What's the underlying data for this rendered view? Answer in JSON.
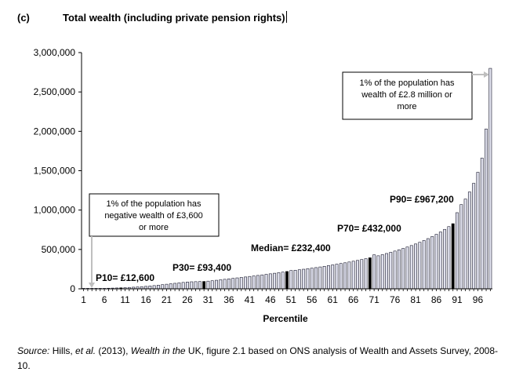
{
  "heading": {
    "tag": "(c)",
    "title": "Total wealth (including private pension rights)"
  },
  "chart_data": {
    "type": "bar",
    "title": "Total wealth (including private pension rights)",
    "xlabel": "Percentile",
    "ylabel": "",
    "ylim": [
      0,
      3000000
    ],
    "yticks": [
      "0",
      "500,000",
      "1,000,000",
      "1,500,000",
      "2,000,000",
      "2,500,000",
      "3,000,000"
    ],
    "xticks": [
      "1",
      "6",
      "11",
      "16",
      "21",
      "26",
      "31",
      "36",
      "41",
      "46",
      "51",
      "56",
      "61",
      "66",
      "71",
      "76",
      "81",
      "86",
      "91",
      "96"
    ],
    "categories": [
      1,
      2,
      3,
      4,
      5,
      6,
      7,
      8,
      9,
      10,
      11,
      12,
      13,
      14,
      15,
      16,
      17,
      18,
      19,
      20,
      21,
      22,
      23,
      24,
      25,
      26,
      27,
      28,
      29,
      30,
      31,
      32,
      33,
      34,
      35,
      36,
      37,
      38,
      39,
      40,
      41,
      42,
      43,
      44,
      45,
      46,
      47,
      48,
      49,
      50,
      51,
      52,
      53,
      54,
      55,
      56,
      57,
      58,
      59,
      60,
      61,
      62,
      63,
      64,
      65,
      66,
      67,
      68,
      69,
      70,
      71,
      72,
      73,
      74,
      75,
      76,
      77,
      78,
      79,
      80,
      81,
      82,
      83,
      84,
      85,
      86,
      87,
      88,
      89,
      90,
      91,
      92,
      93,
      94,
      95,
      96,
      97,
      98,
      99
    ],
    "values": [
      0,
      600,
      1700,
      3000,
      4500,
      6000,
      7600,
      9200,
      10900,
      12600,
      15000,
      17800,
      20800,
      24000,
      27700,
      31700,
      36200,
      41300,
      46800,
      52800,
      58500,
      64500,
      70300,
      76000,
      81500,
      86600,
      89700,
      91300,
      92500,
      93400,
      97800,
      103000,
      108800,
      115200,
      121000,
      127000,
      133000,
      139000,
      145000,
      151000,
      157500,
      164000,
      170500,
      177000,
      184000,
      191000,
      198000,
      205000,
      212500,
      220000,
      232400,
      236000,
      242500,
      249000,
      256000,
      263000,
      270000,
      278000,
      286000,
      295000,
      304000,
      313000,
      322000,
      331000,
      341000,
      351000,
      361000,
      372000,
      383000,
      394000,
      432000,
      420000,
      434000,
      449000,
      464000,
      480000,
      496000,
      513000,
      531000,
      550000,
      570000,
      591000,
      614000,
      638000,
      664000,
      692000,
      722000,
      755000,
      790000,
      827000,
      967200,
      1070000,
      1140000,
      1230000,
      1340000,
      1480000,
      1660000,
      2030000,
      2800000
    ],
    "highlights": [
      10,
      30,
      50,
      70,
      90
    ],
    "annotations": {
      "p10": "P10=  £12,600",
      "p30": "P30= £93,400",
      "median": "Median= £232,400",
      "p70": "P70= £432,000",
      "p90": "P90= £967,200",
      "negative_box": [
        "1% of the population has",
        "negative  wealth of £3,600",
        "or more"
      ],
      "top_box": [
        "1% of the population has",
        "wealth of £2.8 million or",
        "more"
      ]
    },
    "colors": {
      "bar_fill": "#dfe0ec",
      "bar_edge": "#1a1a2e",
      "highlight": "#000000",
      "axis": "#000000",
      "arrow": "#bfbfbf"
    }
  },
  "source": {
    "label": "Source:",
    "authors": " Hills, ",
    "etal": "et al.",
    "year": " (2013), ",
    "book_italic": "Wealth in the",
    "rest": " UK, figure 2.1 based on ONS analysis of Wealth and Assets Survey, 2008-10."
  }
}
